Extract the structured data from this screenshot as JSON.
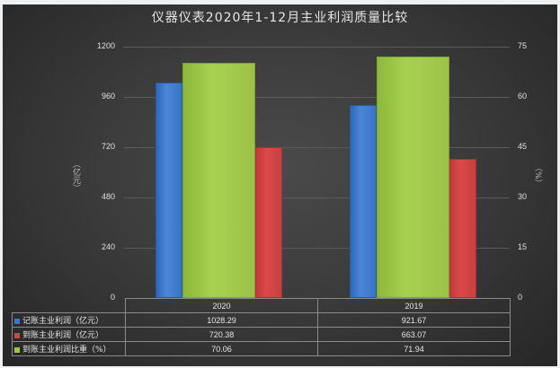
{
  "title": "仪器仪表2020年1-12月主业利润质量比较",
  "colors": {
    "blue": "#3a78cc",
    "red": "#d24444",
    "green": "#9cc84a",
    "background": "#3a3a3a"
  },
  "left_axis": {
    "label": "（亿元）",
    "ticks": [
      "1200",
      "960",
      "720",
      "480",
      "240",
      "0"
    ]
  },
  "right_axis": {
    "label": "（%）",
    "ticks": [
      "75",
      "60",
      "45",
      "30",
      "15",
      "0"
    ]
  },
  "table": {
    "columns": [
      "2020",
      "2019"
    ],
    "rows": [
      {
        "label": "记账主业利润（亿元）",
        "values": [
          "1028.29",
          "921.67"
        ]
      },
      {
        "label": "到账主业利润（亿元）",
        "values": [
          "720.38",
          "663.07"
        ]
      },
      {
        "label": "到账主业利润比重（%）",
        "values": [
          "70.06",
          "71.94"
        ]
      }
    ]
  },
  "chart_data": {
    "type": "bar",
    "title": "仪器仪表2020年1-12月主业利润质量比较",
    "categories": [
      "2020",
      "2019"
    ],
    "series": [
      {
        "name": "记账主业利润（亿元）",
        "axis": "left",
        "color": "#3a78cc",
        "values": [
          1028.29,
          921.67
        ]
      },
      {
        "name": "到账主业利润（亿元）",
        "axis": "left",
        "color": "#d24444",
        "values": [
          720.38,
          663.07
        ]
      },
      {
        "name": "到账主业利润比重（%）",
        "axis": "right",
        "color": "#9cc84a",
        "values": [
          70.06,
          71.94
        ]
      }
    ],
    "ylabel": "（亿元）",
    "y2label": "（%）",
    "ylim": [
      0,
      1200
    ],
    "y2lim": [
      0,
      75
    ],
    "yticks": [
      0,
      240,
      480,
      720,
      960,
      1200
    ],
    "y2ticks": [
      0,
      15,
      30,
      45,
      60,
      75
    ],
    "grid": true,
    "legend": "data-table below chart"
  }
}
